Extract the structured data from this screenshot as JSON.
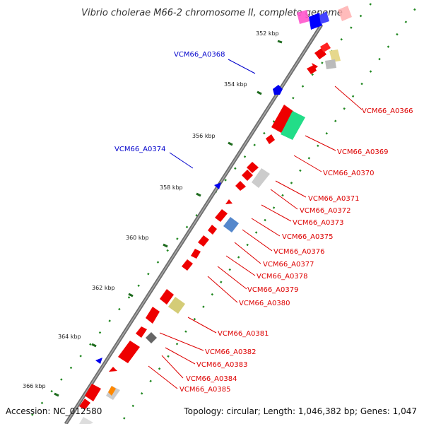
{
  "title": "Vibrio cholerae M66-2 chromosome II, complete genome",
  "accession": "Accession: NC_012580",
  "topology": "Topology: circular; Length: 1,046,382 bp; Genes: 1,047",
  "colors": {
    "forward_label": "#0000cc",
    "reverse_label": "#dd0000",
    "gene": "#ff0000",
    "backbone": "#888888",
    "dots": "#228822"
  },
  "ticks": [
    "352 kbp",
    "354 kbp",
    "356 kbp",
    "358 kbp",
    "360 kbp",
    "362 kbp",
    "364 kbp",
    "366 kbp"
  ],
  "forward_genes": [
    "VCM66_A0368",
    "VCM66_A0374"
  ],
  "reverse_genes": [
    "VCM66_A0366",
    "VCM66_A0369",
    "VCM66_A0370",
    "VCM66_A0371",
    "VCM66_A0372",
    "VCM66_A0373",
    "VCM66_A0375",
    "VCM66_A0376",
    "VCM66_A0377",
    "VCM66_A0378",
    "VCM66_A0379",
    "VCM66_A0380",
    "VCM66_A0381",
    "VCM66_A0382",
    "VCM66_A0383",
    "VCM66_A0384",
    "VCM66_A0385"
  ]
}
